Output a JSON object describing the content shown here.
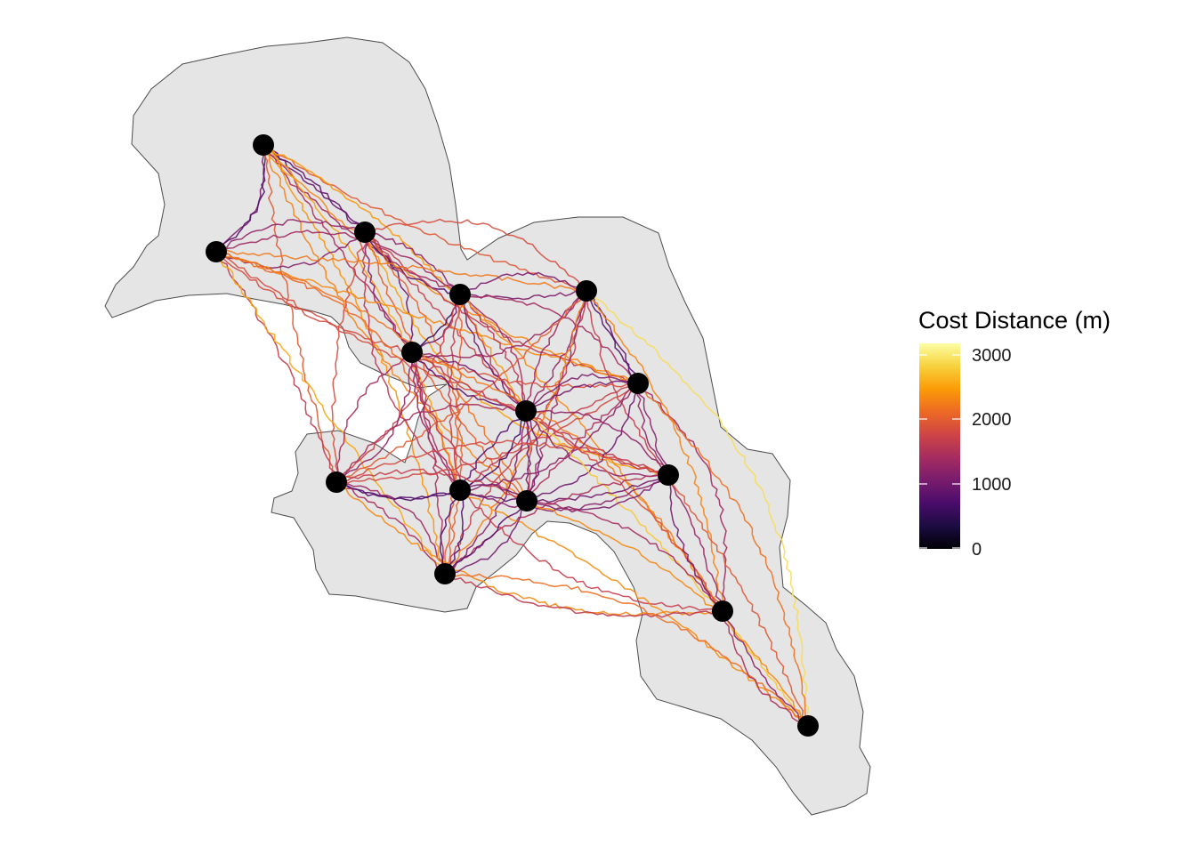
{
  "legend": {
    "title": "Cost Distance (m)",
    "ticks": [
      {
        "value": 3000,
        "label": "3000"
      },
      {
        "value": 2000,
        "label": "2000"
      },
      {
        "value": 1000,
        "label": "1000"
      },
      {
        "value": 0,
        "label": "0"
      }
    ],
    "range": [
      0,
      3200
    ],
    "palette": "inferno",
    "colors": [
      "#000004",
      "#1b0c41",
      "#4a0c6b",
      "#781c6d",
      "#a52c60",
      "#cf4446",
      "#ed6925",
      "#fb9b06",
      "#f7d13d",
      "#fcffa4"
    ]
  },
  "land_color": "#e5e5e5",
  "land_outline_color": "#4d4d4d",
  "node_color": "#000000",
  "nodes": [
    "n1",
    "n2",
    "n3",
    "n4",
    "n5",
    "n6",
    "n7",
    "n8",
    "n9",
    "n10",
    "n11",
    "n12",
    "n13",
    "n14",
    "n15"
  ]
}
